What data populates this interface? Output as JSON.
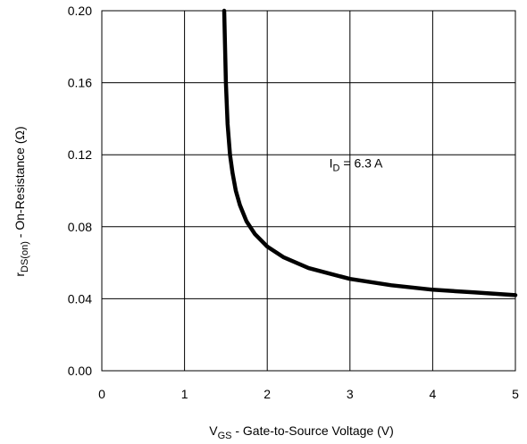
{
  "chart_data": {
    "type": "line",
    "title": "",
    "xlabel": {
      "main": "V",
      "sub": "GS",
      "rest": " - Gate-to-Source Voltage (V)"
    },
    "ylabel": {
      "main": "r",
      "sub": "DS(on)",
      "rest": "  -  On-Resistance (Ω)"
    },
    "xlim": [
      0,
      5
    ],
    "ylim": [
      0,
      0.2
    ],
    "x_ticks": [
      "0",
      "1",
      "2",
      "3",
      "4",
      "5"
    ],
    "y_ticks": [
      "0.00",
      "0.04",
      "0.08",
      "0.12",
      "0.16",
      "0.20"
    ],
    "grid": true,
    "annotation": {
      "main": "I",
      "sub": "D",
      "rest": " = 6.3 A",
      "x": 2.75,
      "y": 0.113
    },
    "series": [
      {
        "x": [
          1.48,
          1.5,
          1.52,
          1.55,
          1.58,
          1.62,
          1.67,
          1.75,
          1.85,
          2.0,
          2.2,
          2.5,
          3.0,
          3.5,
          4.0,
          4.5,
          5.0
        ],
        "y": [
          0.2,
          0.16,
          0.137,
          0.12,
          0.11,
          0.1,
          0.092,
          0.083,
          0.076,
          0.069,
          0.063,
          0.057,
          0.051,
          0.0475,
          0.045,
          0.0435,
          0.042
        ]
      }
    ]
  }
}
